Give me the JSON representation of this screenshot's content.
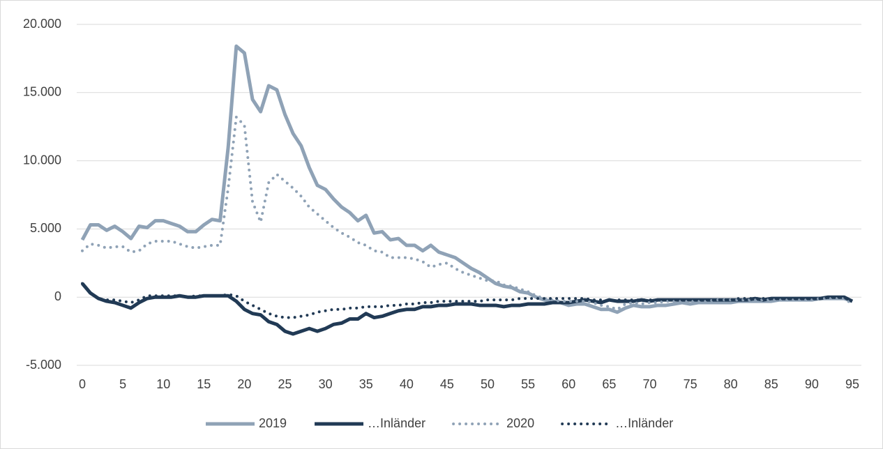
{
  "chart_data": {
    "type": "line",
    "x": [
      0,
      1,
      2,
      3,
      4,
      5,
      6,
      7,
      8,
      9,
      10,
      11,
      12,
      13,
      14,
      15,
      16,
      17,
      18,
      19,
      20,
      21,
      22,
      23,
      24,
      25,
      26,
      27,
      28,
      29,
      30,
      31,
      32,
      33,
      34,
      35,
      36,
      37,
      38,
      39,
      40,
      41,
      42,
      43,
      44,
      45,
      46,
      47,
      48,
      49,
      50,
      51,
      52,
      53,
      54,
      55,
      56,
      57,
      58,
      59,
      60,
      61,
      62,
      63,
      64,
      65,
      66,
      67,
      68,
      69,
      70,
      71,
      72,
      73,
      74,
      75,
      76,
      77,
      78,
      79,
      80,
      81,
      82,
      83,
      84,
      85,
      86,
      87,
      88,
      89,
      90,
      91,
      92,
      93,
      94,
      95
    ],
    "series": [
      {
        "name": "2019",
        "color": "#8fa2b6",
        "line_style": "solid",
        "values": [
          4200,
          5300,
          5300,
          4900,
          5200,
          4800,
          4300,
          5200,
          5100,
          5600,
          5600,
          5400,
          5200,
          4800,
          4800,
          5300,
          5700,
          5600,
          11000,
          18400,
          17900,
          14500,
          13600,
          15500,
          15200,
          13400,
          12000,
          11100,
          9500,
          8200,
          7900,
          7200,
          6600,
          6200,
          5600,
          6000,
          4700,
          4800,
          4200,
          4300,
          3800,
          3800,
          3400,
          3800,
          3300,
          3100,
          2900,
          2500,
          2100,
          1800,
          1400,
          1000,
          800,
          700,
          400,
          300,
          0,
          -200,
          -300,
          -400,
          -600,
          -500,
          -500,
          -700,
          -900,
          -900,
          -1100,
          -800,
          -600,
          -700,
          -700,
          -600,
          -600,
          -500,
          -400,
          -500,
          -400,
          -400,
          -400,
          -400,
          -400,
          -300,
          -300,
          -300,
          -300,
          -300,
          -200,
          -200,
          -200,
          -200,
          -200,
          -100,
          -100,
          -100,
          -100,
          -300
        ]
      },
      {
        "name": "…Inländer",
        "color": "#213a55",
        "line_style": "solid",
        "values": [
          1000,
          300,
          -100,
          -300,
          -400,
          -600,
          -800,
          -400,
          -100,
          0,
          0,
          0,
          100,
          0,
          0,
          100,
          100,
          100,
          100,
          -300,
          -900,
          -1200,
          -1300,
          -1800,
          -2000,
          -2500,
          -2700,
          -2500,
          -2300,
          -2500,
          -2300,
          -2000,
          -1900,
          -1600,
          -1600,
          -1200,
          -1500,
          -1400,
          -1200,
          -1000,
          -900,
          -900,
          -700,
          -700,
          -600,
          -600,
          -500,
          -500,
          -500,
          -600,
          -600,
          -600,
          -700,
          -600,
          -600,
          -500,
          -500,
          -500,
          -400,
          -400,
          -400,
          -300,
          -200,
          -300,
          -400,
          -200,
          -300,
          -300,
          -300,
          -200,
          -300,
          -200,
          -200,
          -200,
          -200,
          -200,
          -200,
          -200,
          -200,
          -200,
          -200,
          -200,
          -200,
          -100,
          -200,
          -100,
          -100,
          -100,
          -100,
          -100,
          -100,
          -100,
          0,
          0,
          0,
          -300
        ]
      },
      {
        "name": "2020",
        "color": "#8fa2b6",
        "line_style": "dotted",
        "values": [
          3400,
          3900,
          3800,
          3600,
          3700,
          3700,
          3300,
          3400,
          3900,
          4100,
          4100,
          4100,
          3900,
          3700,
          3600,
          3700,
          3800,
          3800,
          8000,
          13200,
          12600,
          7000,
          5500,
          8400,
          9000,
          8500,
          8000,
          7400,
          6600,
          6100,
          5600,
          5100,
          4700,
          4400,
          4000,
          3800,
          3400,
          3300,
          2900,
          2900,
          2900,
          2800,
          2600,
          2200,
          2400,
          2500,
          2100,
          1800,
          1600,
          1400,
          1200,
          1200,
          900,
          800,
          600,
          400,
          100,
          -100,
          -200,
          -300,
          -300,
          -300,
          -300,
          -400,
          -600,
          -700,
          -900,
          -500,
          -400,
          -500,
          -400,
          -400,
          -300,
          -300,
          -300,
          -300,
          -300,
          -300,
          -200,
          -200,
          -200,
          -200,
          -200,
          -200,
          -200,
          -200,
          -200,
          -200,
          -200,
          -200,
          -200,
          -100,
          -100,
          -100,
          -100,
          -500
        ]
      },
      {
        "name": "…Inländer",
        "color": "#213a55",
        "line_style": "dotted",
        "values": [
          1000,
          300,
          -100,
          -200,
          -200,
          -300,
          -400,
          -200,
          100,
          100,
          100,
          100,
          100,
          0,
          100,
          100,
          100,
          100,
          200,
          100,
          -300,
          -600,
          -900,
          -1200,
          -1400,
          -1500,
          -1500,
          -1400,
          -1300,
          -1100,
          -1000,
          -900,
          -900,
          -800,
          -800,
          -700,
          -700,
          -700,
          -600,
          -600,
          -500,
          -500,
          -400,
          -400,
          -300,
          -300,
          -300,
          -300,
          -300,
          -300,
          -200,
          -200,
          -200,
          -200,
          -100,
          -100,
          -100,
          -100,
          -100,
          -100,
          -100,
          -100,
          -100,
          -200,
          -200,
          -300,
          -200,
          -200,
          -200,
          -200,
          -200,
          -200,
          -200,
          -200,
          -200,
          -200,
          -200,
          -200,
          -200,
          -200,
          -200,
          -100,
          -100,
          -100,
          -100,
          -100,
          -100,
          -100,
          -100,
          -100,
          -100,
          -100,
          0,
          0,
          0,
          -300
        ]
      }
    ],
    "xlim": [
      0,
      95
    ],
    "xticks": [
      0,
      5,
      10,
      15,
      20,
      25,
      30,
      35,
      40,
      45,
      50,
      55,
      60,
      65,
      70,
      75,
      80,
      85,
      90,
      95
    ],
    "ylim": [
      -5000,
      20000
    ],
    "yticks": [
      {
        "value": -5000,
        "label": "-5.000"
      },
      0,
      {
        "value": 5000,
        "label": "5.000"
      },
      {
        "value": 10000,
        "label": "10.000"
      },
      {
        "value": 15000,
        "label": "15.000"
      },
      {
        "value": 20000,
        "label": "20.000"
      }
    ],
    "grid": true,
    "legend": "bottom"
  }
}
